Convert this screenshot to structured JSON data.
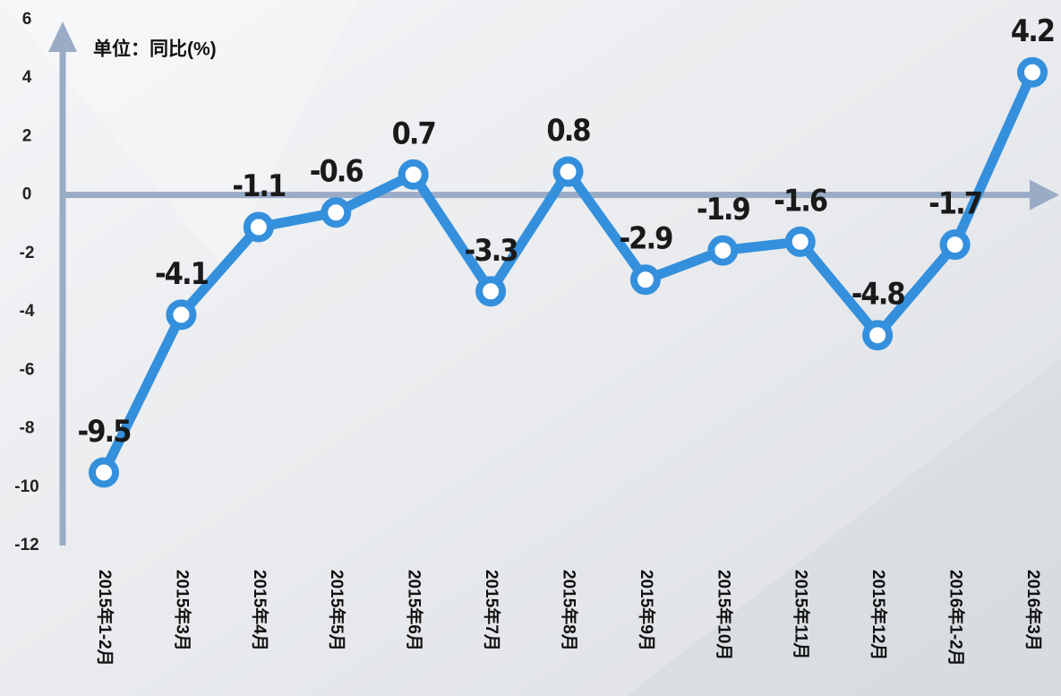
{
  "chart_data": {
    "type": "line",
    "axis_label": "单位：同比(%)",
    "categories": [
      "2015年1-2月",
      "2015年3月",
      "2015年4月",
      "2015年5月",
      "2015年6月",
      "2015年7月",
      "2015年8月",
      "2015年9月",
      "2015年10月",
      "2015年11月",
      "2015年12月",
      "2016年1-2月",
      "2016年3月"
    ],
    "series": [
      {
        "color": "#3490dc",
        "values": [
          -9.5,
          -4.1,
          -1.1,
          -0.6,
          0.7,
          -3.3,
          0.8,
          -2.9,
          -1.9,
          -1.6,
          -4.8,
          -1.7,
          4.2
        ]
      }
    ],
    "ylim": [
      -12,
      6
    ],
    "yticks": [
      -12,
      -10,
      -8,
      -6,
      -4,
      -2,
      0,
      2,
      4,
      6
    ],
    "axis_color": "#9aabc6",
    "grid": false
  }
}
